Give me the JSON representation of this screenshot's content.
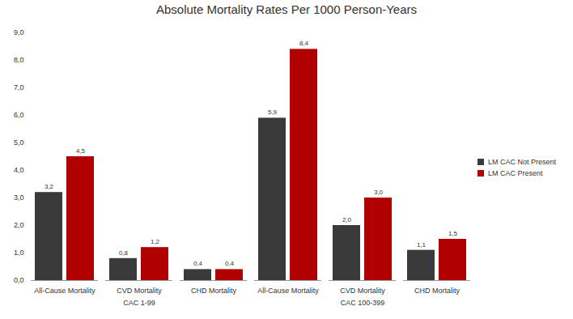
{
  "chart_data": {
    "type": "bar",
    "title": "Absolute Mortality Rates Per 1000 Person-Years",
    "categories": [
      "All-Cause Mortality",
      "CVD Mortality",
      "CHD Mortality",
      "All-Cause Mortality",
      "CVD Mortality",
      "CHD Mortality"
    ],
    "category_groups": [
      "CAC 1-99",
      "CAC 1-99",
      "CAC 1-99",
      "CAC 100-399",
      "CAC 100-399",
      "CAC 100-399"
    ],
    "series": [
      {
        "name": "LM CAC Not Present",
        "color": "#3a3a3a",
        "values": [
          3.2,
          0.8,
          0.4,
          5.9,
          2.0,
          1.1
        ],
        "value_labels": [
          "3,2",
          "0,8",
          "0,4",
          "5,9",
          "2,0",
          "1,1"
        ]
      },
      {
        "name": "LM CAC Present",
        "color": "#b00000",
        "values": [
          4.5,
          1.2,
          0.4,
          8.4,
          3.0,
          1.5
        ],
        "value_labels": [
          "4,5",
          "1,2",
          "0,4",
          "8,4",
          "3,0",
          "1,5"
        ]
      }
    ],
    "ylim": [
      0,
      9
    ],
    "yticks": [
      {
        "value": 0,
        "label": "0,0"
      },
      {
        "value": 1,
        "label": "1,0"
      },
      {
        "value": 2,
        "label": "2,0"
      },
      {
        "value": 3,
        "label": "3,0"
      },
      {
        "value": 4,
        "label": "4,0"
      },
      {
        "value": 5,
        "label": "5,0"
      },
      {
        "value": 6,
        "label": "6,0"
      },
      {
        "value": 7,
        "label": "7,0"
      },
      {
        "value": 8,
        "label": "8,0"
      },
      {
        "value": 9,
        "label": "9,0"
      }
    ],
    "grid": false,
    "legend": "right",
    "data_labels": true
  }
}
